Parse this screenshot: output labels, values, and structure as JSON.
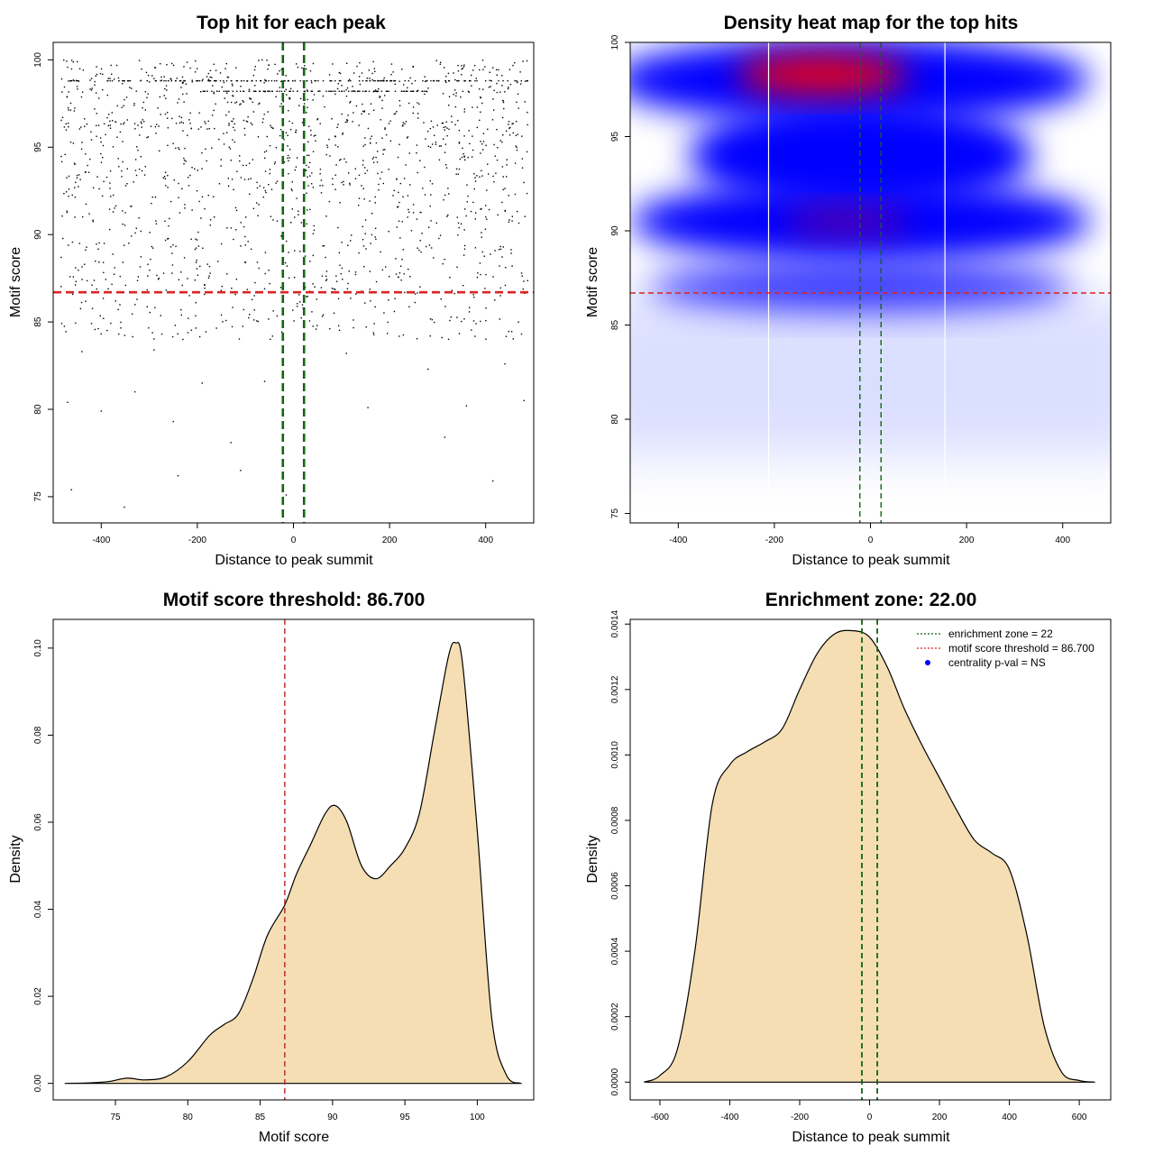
{
  "chart_data": [
    {
      "type": "scatter",
      "title": "Top hit for each peak",
      "xlabel": "Distance to peak summit",
      "ylabel": "Motif score",
      "xlim": [
        -500,
        500
      ],
      "ylim": [
        73.5,
        101
      ],
      "xticks": [
        -400,
        -200,
        0,
        200,
        400
      ],
      "yticks": [
        75,
        80,
        85,
        90,
        95,
        100
      ],
      "point_color": "#000000",
      "approx_point_count": 1500,
      "point_density_note_rows": [
        98.8,
        98.2
      ],
      "points_sample": [
        [
          -462,
          75.4
        ],
        [
          -352,
          74.4
        ],
        [
          -15,
          75.1
        ],
        [
          -240,
          76.2
        ],
        [
          -110,
          76.5
        ],
        [
          415,
          75.9
        ],
        [
          -130,
          78.1
        ],
        [
          315,
          78.4
        ],
        [
          -250,
          79.3
        ],
        [
          -400,
          79.9
        ],
        [
          -470,
          80.4
        ],
        [
          155,
          80.1
        ],
        [
          360,
          80.2
        ],
        [
          480,
          80.5
        ],
        [
          -330,
          81.0
        ],
        [
          -190,
          81.5
        ],
        [
          -60,
          81.6
        ],
        [
          280,
          82.3
        ],
        [
          440,
          82.6
        ],
        [
          -440,
          83.3
        ],
        [
          -290,
          83.4
        ],
        [
          110,
          83.2
        ],
        [
          -230,
          84.0
        ],
        [
          380,
          84.9
        ],
        [
          -150,
          85.4
        ],
        [
          20,
          85.8
        ],
        [
          210,
          85.6
        ],
        [
          -370,
          86.2
        ],
        [
          -60,
          86.9
        ],
        [
          130,
          86.6
        ],
        [
          330,
          86.8
        ]
      ],
      "hlines": [
        {
          "y": 86.7,
          "color": "#dd2222",
          "style": "dashed"
        }
      ],
      "vlines": [
        {
          "x": -22,
          "color": "#116611",
          "style": "dashed"
        },
        {
          "x": 22,
          "color": "#116611",
          "style": "dashed"
        }
      ]
    },
    {
      "type": "heatmap",
      "title": "Density heat map for the top hits",
      "xlabel": "Distance to peak summit",
      "ylabel": "Motif score",
      "xlim": [
        -500,
        500
      ],
      "ylim": [
        74.5,
        100
      ],
      "xticks": [
        -400,
        -200,
        0,
        200,
        400
      ],
      "yticks": [
        75,
        80,
        85,
        90,
        95,
        100
      ],
      "colors": [
        "#ffffff",
        "#0000ff",
        "#ff0000"
      ],
      "hotspots": [
        {
          "x": -100,
          "y": 98.3,
          "level": "high"
        },
        {
          "x": -50,
          "y": 90.5,
          "level": "medium"
        }
      ],
      "hlines": [
        {
          "y": 86.7,
          "color": "#dd2222",
          "style": "dashed"
        }
      ],
      "vlines": [
        {
          "x": -22,
          "color": "#116611",
          "style": "dashed"
        },
        {
          "x": 22,
          "color": "#116611",
          "style": "dashed"
        }
      ],
      "white_vlines": [
        -212,
        155
      ]
    },
    {
      "type": "area",
      "title": "Motif score threshold: 86.700",
      "xlabel": "Motif score",
      "ylabel": "Density",
      "xlim": [
        70.7,
        103.9
      ],
      "ylim": [
        -0.0038,
        0.1066
      ],
      "xticks": [
        75,
        80,
        85,
        90,
        95,
        100
      ],
      "yticks": [
        0.0,
        0.02,
        0.04,
        0.06,
        0.08,
        0.1
      ],
      "ytick_labels": [
        "0.00",
        "0.02",
        "0.04",
        "0.06",
        "0.08",
        "0.10"
      ],
      "fill": "#f5deb3",
      "x": [
        71.5,
        73,
        74.5,
        75.8,
        77,
        78.5,
        80,
        81.5,
        82.5,
        83.5,
        84.5,
        85.5,
        86.7,
        87.5,
        88.5,
        89.5,
        90.2,
        91,
        92,
        93,
        94,
        95,
        96,
        97,
        98,
        98.5,
        99,
        100,
        101,
        102,
        103
      ],
      "y": [
        0.0,
        0.0001,
        0.0004,
        0.0012,
        0.0008,
        0.0015,
        0.005,
        0.011,
        0.0135,
        0.016,
        0.024,
        0.034,
        0.041,
        0.048,
        0.055,
        0.062,
        0.0638,
        0.06,
        0.05,
        0.047,
        0.05,
        0.054,
        0.062,
        0.08,
        0.098,
        0.1012,
        0.096,
        0.058,
        0.015,
        0.002,
        0.0
      ],
      "vlines": [
        {
          "x": 86.7,
          "color": "#bb2222",
          "style": "dashed"
        }
      ]
    },
    {
      "type": "area",
      "title": "Enrichment zone: 22.00",
      "xlabel": "Distance to peak summit",
      "ylabel": "Density",
      "xlim": [
        -685,
        690
      ],
      "ylim": [
        -5.44e-05,
        0.0014144
      ],
      "xticks": [
        -600,
        -400,
        -200,
        0,
        200,
        400,
        600
      ],
      "yticks": [
        0.0,
        0.0002,
        0.0004,
        0.0006,
        0.0008,
        0.001,
        0.0012,
        0.0014
      ],
      "ytick_labels": [
        "0.0000",
        "0.0002",
        "0.0004",
        "0.0006",
        "0.0008",
        "0.0010",
        "0.0012",
        "0.0014"
      ],
      "fill": "#f5deb3",
      "x": [
        -645,
        -600,
        -550,
        -500,
        -450,
        -400,
        -350,
        -300,
        -250,
        -200,
        -150,
        -100,
        -50,
        0,
        50,
        100,
        150,
        200,
        250,
        300,
        350,
        400,
        450,
        500,
        550,
        600,
        645
      ],
      "y": [
        0.0,
        2e-05,
        0.0001,
        0.0004,
        0.00085,
        0.00097,
        0.00101,
        0.00104,
        0.00108,
        0.0012,
        0.00131,
        0.00137,
        0.00138,
        0.00136,
        0.00127,
        0.00114,
        0.00103,
        0.00093,
        0.00083,
        0.00074,
        0.0007,
        0.00065,
        0.00045,
        0.00017,
        3e-05,
        5e-06,
        0.0
      ],
      "vlines": [
        {
          "x": -22,
          "color": "#116611",
          "style": "dashed"
        },
        {
          "x": 22,
          "color": "#116611",
          "style": "dashed"
        }
      ],
      "legend": {
        "position": "top-right",
        "entries": [
          {
            "label": "enrichment zone = 22",
            "color": "#116611",
            "kind": "dotted-line"
          },
          {
            "label": "motif score threshold = 86.700",
            "color": "#dd2222",
            "kind": "dotted-line"
          },
          {
            "label": "centrality p-val = NS",
            "color": "#0000ff",
            "kind": "point"
          }
        ]
      }
    }
  ]
}
